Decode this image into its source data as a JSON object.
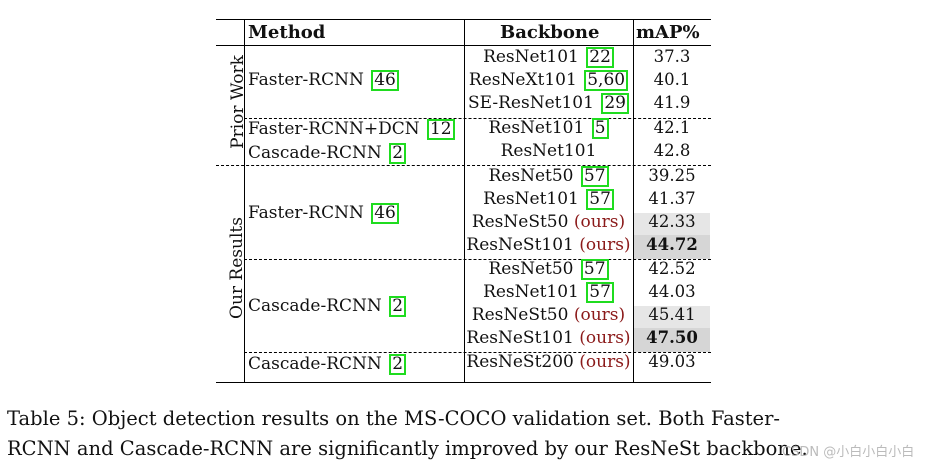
{
  "table": {
    "headers": {
      "method": "Method",
      "backbone": "Backbone",
      "map": "mAP%"
    },
    "groups": {
      "prior": "Prior Work",
      "ours": "Our Results"
    },
    "methods": {
      "m1": "Faster-RCNN",
      "m1_ref": "46",
      "m2": "Faster-RCNN+DCN",
      "m2_ref": "12",
      "m3": "Cascade-RCNN",
      "m3_ref": "2",
      "m4": "Faster-RCNN",
      "m4_ref": "46",
      "m5": "Cascade-RCNN",
      "m5_ref": "2",
      "m6": "Cascade-RCNN",
      "m6_ref": "2"
    },
    "rows": [
      {
        "backbone": "ResNet101",
        "ref": "22",
        "ours": "",
        "map": "37.3"
      },
      {
        "backbone": "ResNeXt101",
        "ref": "5,60",
        "ours": "",
        "map": "40.1"
      },
      {
        "backbone": "SE-ResNet101",
        "ref": "29",
        "ours": "",
        "map": "41.9"
      },
      {
        "backbone": "ResNet101",
        "ref": "5",
        "ours": "",
        "map": "42.1"
      },
      {
        "backbone": "ResNet101",
        "ref": "",
        "ours": "",
        "map": "42.8"
      },
      {
        "backbone": "ResNet50",
        "ref": "57",
        "ours": "",
        "map": "39.25"
      },
      {
        "backbone": "ResNet101",
        "ref": "57",
        "ours": "",
        "map": "41.37"
      },
      {
        "backbone": "ResNeSt50",
        "ref": "",
        "ours": "(ours)",
        "map": "42.33"
      },
      {
        "backbone": "ResNeSt101",
        "ref": "",
        "ours": "(ours)",
        "map": "44.72"
      },
      {
        "backbone": "ResNet50",
        "ref": "57",
        "ours": "",
        "map": "42.52"
      },
      {
        "backbone": "ResNet101",
        "ref": "57",
        "ours": "",
        "map": "44.03"
      },
      {
        "backbone": "ResNeSt50",
        "ref": "",
        "ours": "(ours)",
        "map": "45.41"
      },
      {
        "backbone": "ResNeSt101",
        "ref": "",
        "ours": "(ours)",
        "map": "47.50"
      },
      {
        "backbone": "ResNeSt200",
        "ref": "",
        "ours": "(ours)",
        "map": "49.03"
      }
    ]
  },
  "caption": {
    "line1": "Table 5: Object detection results on the MS-COCO validation set. Both Faster-",
    "line2": "RCNN and Cascade-RCNN are significantly improved by our ResNeSt backbone."
  },
  "watermark": "CSDN @小白小白小白"
}
